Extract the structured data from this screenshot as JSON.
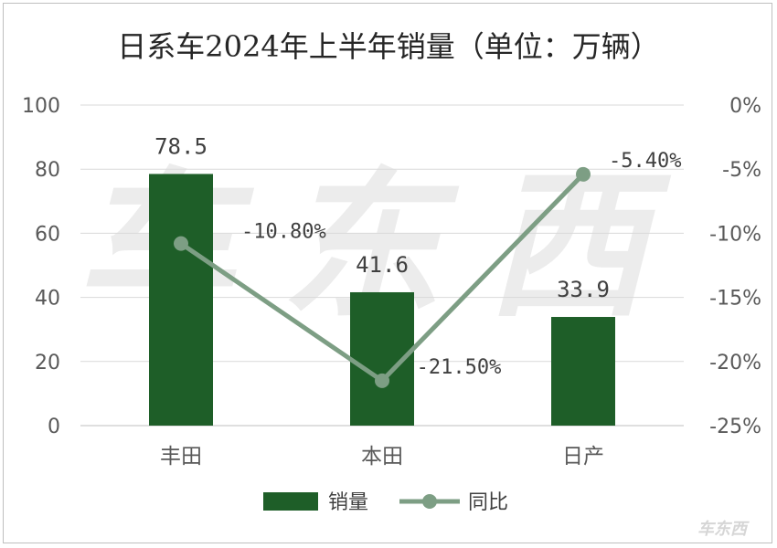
{
  "chart_data": {
    "type": "bar",
    "title": "日系车2024年上半年销量（单位：万辆）",
    "categories": [
      "丰田",
      "本田",
      "日产"
    ],
    "series": [
      {
        "name": "销量",
        "type": "bar",
        "axis": "left",
        "values": [
          78.5,
          41.6,
          33.9
        ],
        "labels": [
          "78.5",
          "41.6",
          "33.9"
        ],
        "color": "#1e5e28"
      },
      {
        "name": "同比",
        "type": "line",
        "axis": "right",
        "values": [
          -10.8,
          -21.5,
          -5.4
        ],
        "labels": [
          "-10.80%",
          "-21.50%",
          "-5.40%"
        ],
        "color": "#7d9e84"
      }
    ],
    "y_left": {
      "min": 0,
      "max": 100,
      "ticks": [
        "0",
        "20",
        "40",
        "60",
        "80",
        "100"
      ]
    },
    "y_right": {
      "min": -25,
      "max": 0,
      "ticks": [
        "-25%",
        "-20%",
        "-15%",
        "-10%",
        "-5%",
        "0%"
      ]
    },
    "grid": true,
    "legend_position": "bottom",
    "watermark": "车东西"
  }
}
